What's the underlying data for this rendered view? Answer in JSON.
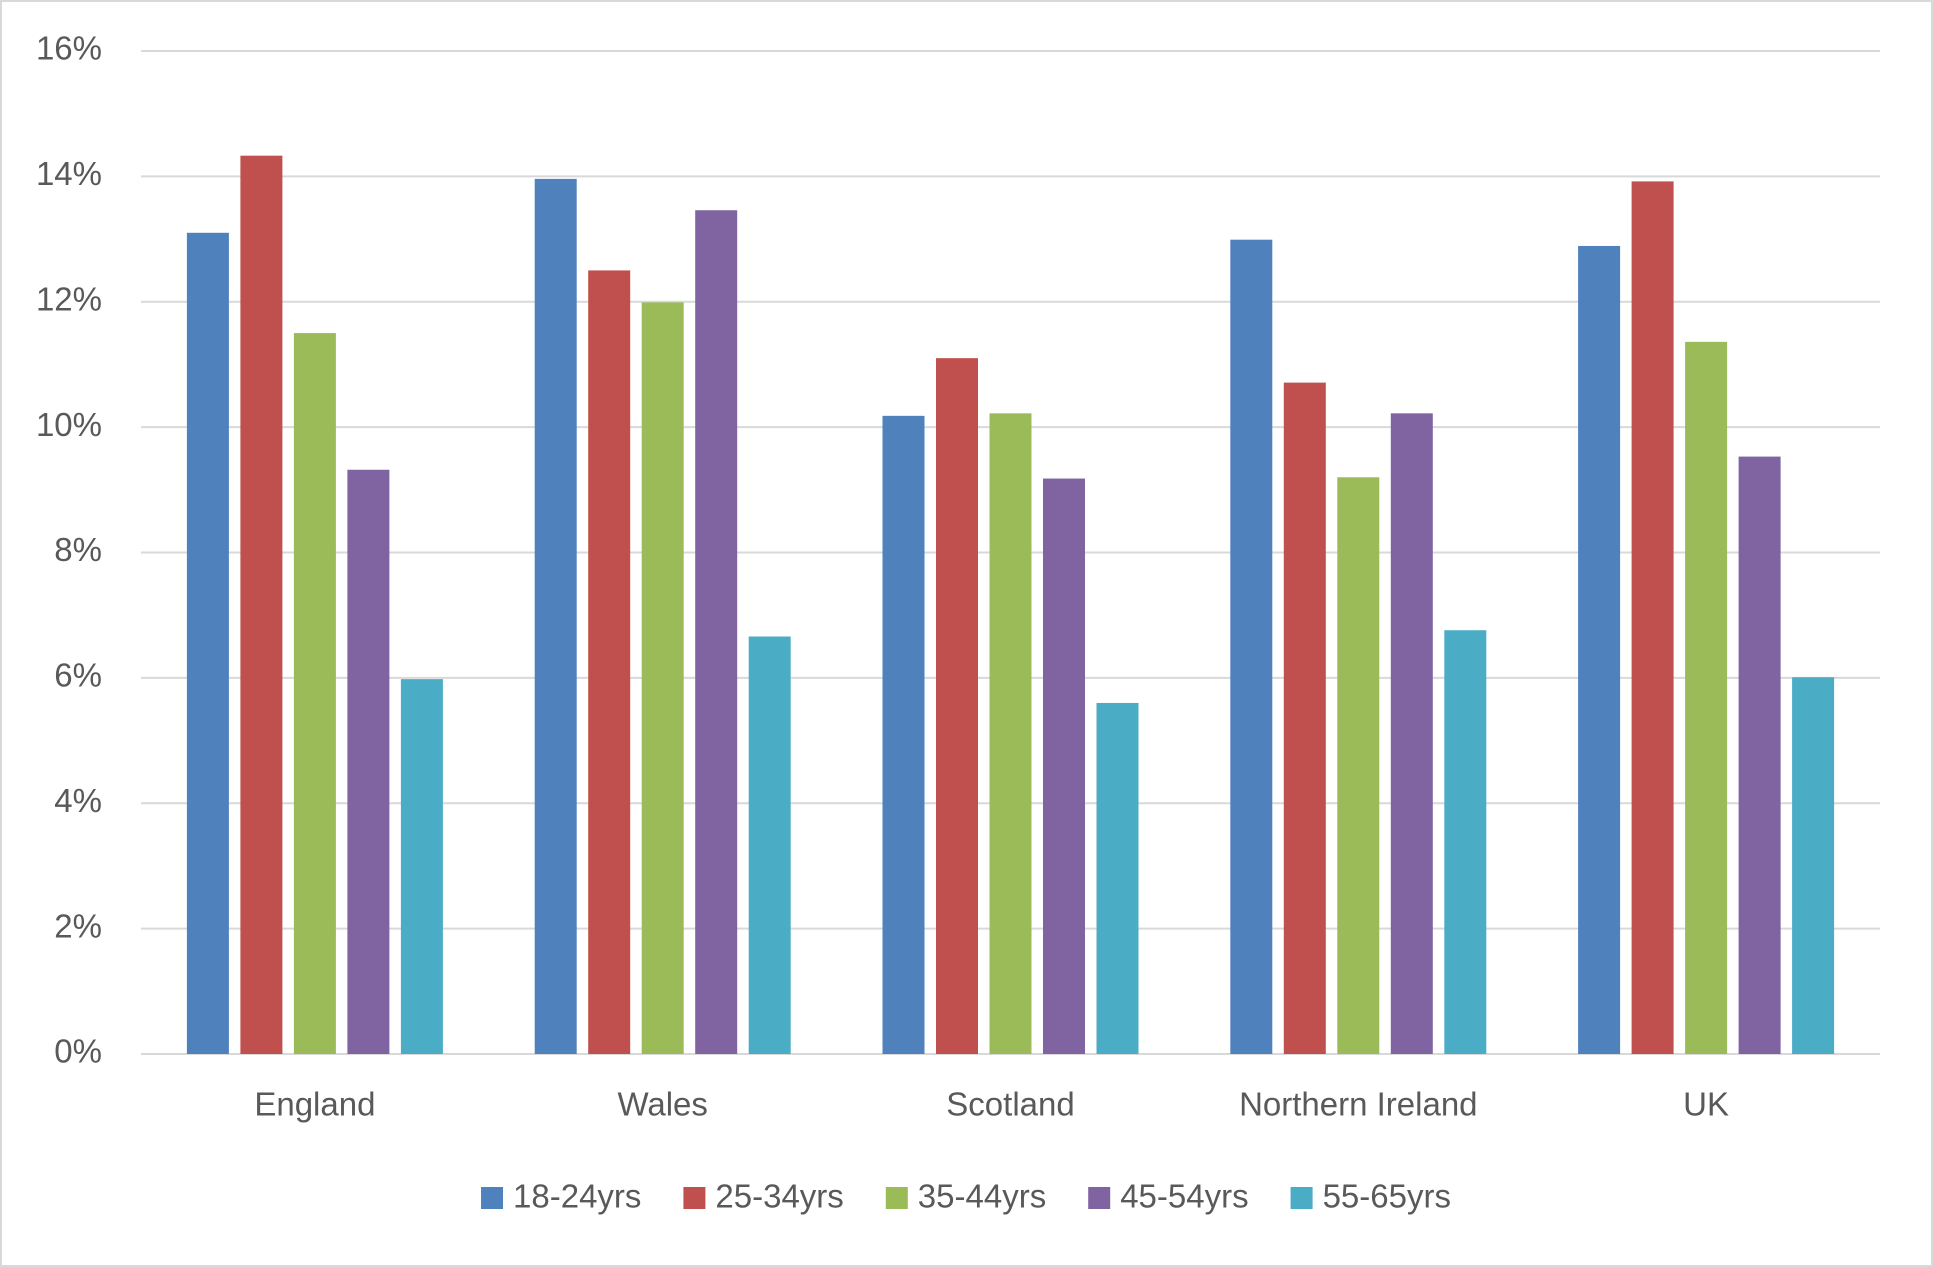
{
  "chart_data": {
    "type": "bar",
    "categories": [
      "England",
      "Wales",
      "Scotland",
      "Northern Ireland",
      "UK"
    ],
    "series": [
      {
        "name": "18-24yrs",
        "color": "#4f81bd",
        "values": [
          13.1,
          13.96,
          10.18,
          12.99,
          12.89
        ]
      },
      {
        "name": "25-34yrs",
        "color": "#c0504d",
        "values": [
          14.33,
          12.5,
          11.1,
          10.71,
          13.92
        ]
      },
      {
        "name": "35-44yrs",
        "color": "#9bbb59",
        "values": [
          11.5,
          11.99,
          10.22,
          9.2,
          11.36
        ]
      },
      {
        "name": "45-54yrs",
        "color": "#8064a2",
        "values": [
          9.32,
          13.46,
          9.18,
          10.22,
          9.53
        ]
      },
      {
        "name": "55-65yrs",
        "color": "#4bacc6",
        "values": [
          5.98,
          6.66,
          5.6,
          6.76,
          6.01
        ]
      }
    ],
    "ylim": [
      0,
      16
    ],
    "yticks": [
      {
        "value": 0,
        "label": "0%"
      },
      {
        "value": 2,
        "label": "2%"
      },
      {
        "value": 4,
        "label": "4%"
      },
      {
        "value": 6,
        "label": "6%"
      },
      {
        "value": 8,
        "label": "8%"
      },
      {
        "value": 10,
        "label": "10%"
      },
      {
        "value": 12,
        "label": "12%"
      },
      {
        "value": 14,
        "label": "14%"
      },
      {
        "value": 16,
        "label": "16%"
      }
    ],
    "grid": true,
    "legend": "bottom"
  }
}
